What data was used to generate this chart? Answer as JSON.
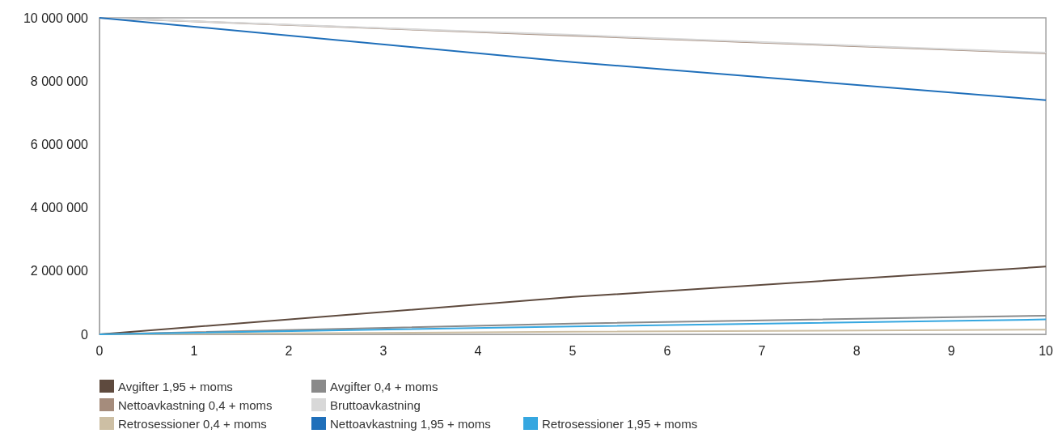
{
  "chart_data": {
    "type": "line",
    "x": [
      0,
      5,
      10
    ],
    "xlim": [
      0,
      10
    ],
    "xticks": [
      0,
      1,
      2,
      3,
      4,
      5,
      6,
      7,
      8,
      9,
      10
    ],
    "ylim": [
      0,
      10000000
    ],
    "yticks": [
      0,
      2000000,
      4000000,
      6000000,
      8000000,
      10000000
    ],
    "grid": false,
    "legend": "bottom",
    "marker": "none",
    "line_style": "solid",
    "series": [
      {
        "name": "Avgifter 1,95 + moms",
        "color": "#5e4a3e",
        "values": [
          0,
          1180000,
          2140000
        ]
      },
      {
        "name": "Nettoavkastning 0,4 + moms",
        "color": "#a58c7c",
        "values": [
          10000000,
          9440000,
          8880000
        ]
      },
      {
        "name": "Retrosessioner 0,4 + moms",
        "color": "#cdbfa4",
        "values": [
          0,
          80000,
          150000
        ]
      },
      {
        "name": "Avgifter 0,4 + moms",
        "color": "#8a8a8a",
        "values": [
          0,
          340000,
          590000
        ]
      },
      {
        "name": "Bruttoavkastning",
        "color": "#d8d8d8",
        "values": [
          10000000,
          9460000,
          8900000
        ]
      },
      {
        "name": "Nettoavkastning 1,95 + moms",
        "color": "#1f6fba",
        "values": [
          10000000,
          8600000,
          7400000
        ]
      },
      {
        "name": "Retrosessioner 1,95 + moms",
        "color": "#36a7e0",
        "values": [
          0,
          250000,
          470000
        ]
      }
    ]
  }
}
